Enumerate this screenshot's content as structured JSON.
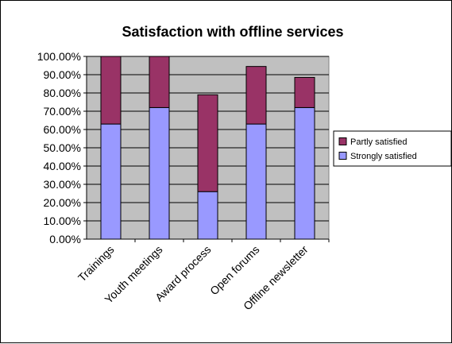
{
  "chart_data": {
    "type": "bar",
    "stacked": true,
    "title": "Satisfaction with offline services",
    "xlabel": "",
    "ylabel": "",
    "categories": [
      "Trainings",
      "Youth meetings",
      "Award process",
      "Open forums",
      "Offline newsletter"
    ],
    "series": [
      {
        "name": "Strongly satisfied",
        "color": "#9999ff",
        "values": [
          63.0,
          72.0,
          26.0,
          63.0,
          72.0
        ]
      },
      {
        "name": "Partly satisfied",
        "color": "#993366",
        "values": [
          37.0,
          28.0,
          53.0,
          31.5,
          16.5
        ]
      }
    ],
    "ylim": [
      0,
      100
    ],
    "yticks": [
      "0.00%",
      "10.00%",
      "20.00%",
      "30.00%",
      "40.00%",
      "50.00%",
      "60.00%",
      "70.00%",
      "80.00%",
      "90.00%",
      "100.00%"
    ],
    "grid": true,
    "plot_background": "#c0c0c0",
    "legend": {
      "placement": "right",
      "order": [
        "Partly satisfied",
        "Strongly satisfied"
      ]
    }
  }
}
